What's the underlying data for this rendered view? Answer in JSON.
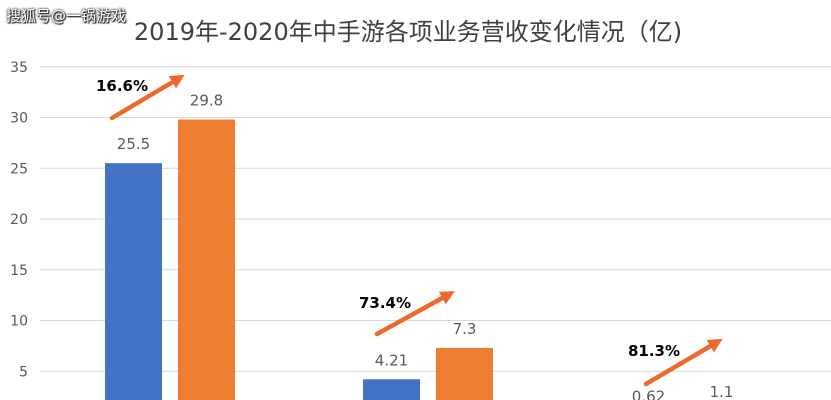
{
  "watermark": "搜狐号@一锅游戏",
  "colors": {
    "series1": "#4472C4",
    "series2": "#ED7D31",
    "grid": "#d9d9d9",
    "text": "#595959",
    "arrow": "#ED6A2C"
  },
  "chart_data": {
    "type": "bar",
    "title": "2019年-2020年中手游各项业务营收变化情况（亿)",
    "xlabel": "",
    "ylabel": "",
    "ylim": [
      0,
      35
    ],
    "yticks": [
      5,
      10,
      15,
      20,
      25,
      30,
      35
    ],
    "grid": true,
    "categories": [
      "",
      "",
      ""
    ],
    "series": [
      {
        "values": [
          25.5,
          4.21,
          0.62
        ],
        "labels": [
          "25.5",
          "4.21",
          "0.62"
        ]
      },
      {
        "values": [
          29.8,
          7.3,
          1.1
        ],
        "labels": [
          "29.8",
          "7.3",
          "1.1"
        ]
      }
    ],
    "annotations": [
      "16.6%",
      "73.4%",
      "81.3%"
    ]
  }
}
